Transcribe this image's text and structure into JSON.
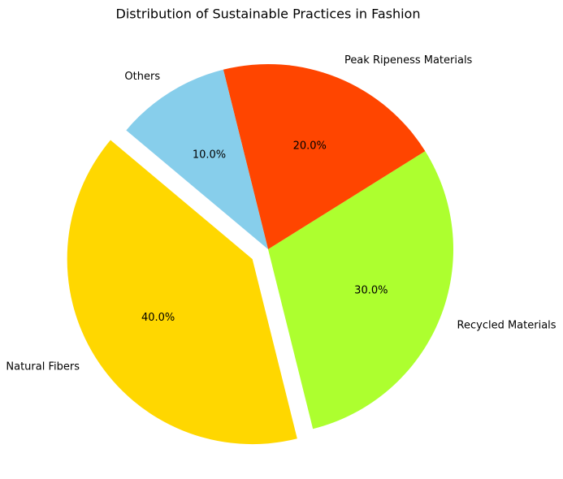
{
  "chart_data": {
    "type": "pie",
    "title": "Distribution of Sustainable Practices in Fashion",
    "categories": [
      "Natural Fibers",
      "Recycled Materials",
      "Peak Ripeness Materials",
      "Others"
    ],
    "values": [
      40,
      30,
      20,
      10
    ],
    "value_labels": [
      "40.0%",
      "30.0%",
      "20.0%",
      "10.0%"
    ],
    "colors": [
      "#FFD700",
      "#ADFF2F",
      "#FF4500",
      "#87CEEB"
    ],
    "startangle": 140,
    "explode": [
      0.1,
      0,
      0,
      0
    ]
  }
}
